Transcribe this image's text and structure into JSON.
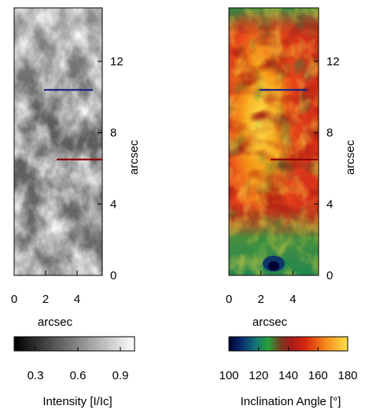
{
  "chart_data": [
    {
      "type": "heatmap",
      "panel": "intensity",
      "title": "",
      "xlabel": "arcsec",
      "ylabel": "arcsec",
      "xlim": [
        0,
        5.6
      ],
      "ylim": [
        0,
        15
      ],
      "x_ticks": [
        0,
        2,
        4
      ],
      "y_ticks": [
        0,
        4,
        8,
        12
      ],
      "grid": false,
      "overlay_lines": [
        {
          "color": "#1a237e",
          "y": 10.4,
          "x_range": [
            1.9,
            5.0
          ]
        },
        {
          "color": "#8b0000",
          "y": 6.5,
          "x_range": [
            2.7,
            5.6
          ]
        }
      ],
      "colorbar": {
        "label": "Intensity [I/Ic]",
        "range": [
          0.15,
          1.0
        ],
        "ticks": [
          "0.3",
          "0.6",
          "0.9"
        ],
        "tick_values": [
          0.3,
          0.6,
          0.9
        ],
        "colormap": [
          "#000000",
          "#ffffff"
        ]
      }
    },
    {
      "type": "heatmap",
      "panel": "inclination",
      "title": "",
      "xlabel": "arcsec",
      "ylabel": "arcsec",
      "xlim": [
        0,
        5.6
      ],
      "ylim": [
        0,
        15
      ],
      "x_ticks": [
        0,
        2,
        4
      ],
      "y_ticks": [
        0,
        4,
        8,
        12
      ],
      "grid": false,
      "overlay_lines": [
        {
          "color": "#1a237e",
          "y": 10.4,
          "x_range": [
            1.9,
            4.9
          ]
        },
        {
          "color": "#8b0000",
          "y": 6.5,
          "x_range": [
            2.6,
            5.6
          ]
        }
      ],
      "colorbar": {
        "label": "Inclination Angle [°]",
        "range": [
          100,
          180
        ],
        "ticks": [
          "100",
          "120",
          "140",
          "160",
          "180"
        ],
        "tick_values": [
          100,
          120,
          140,
          160,
          180
        ],
        "colormap": [
          "#000033",
          "#0a2a6a",
          "#138a6f",
          "#27a23a",
          "#9a1a18",
          "#c81f10",
          "#ee5a10",
          "#f59a18",
          "#fde24a"
        ]
      }
    }
  ]
}
